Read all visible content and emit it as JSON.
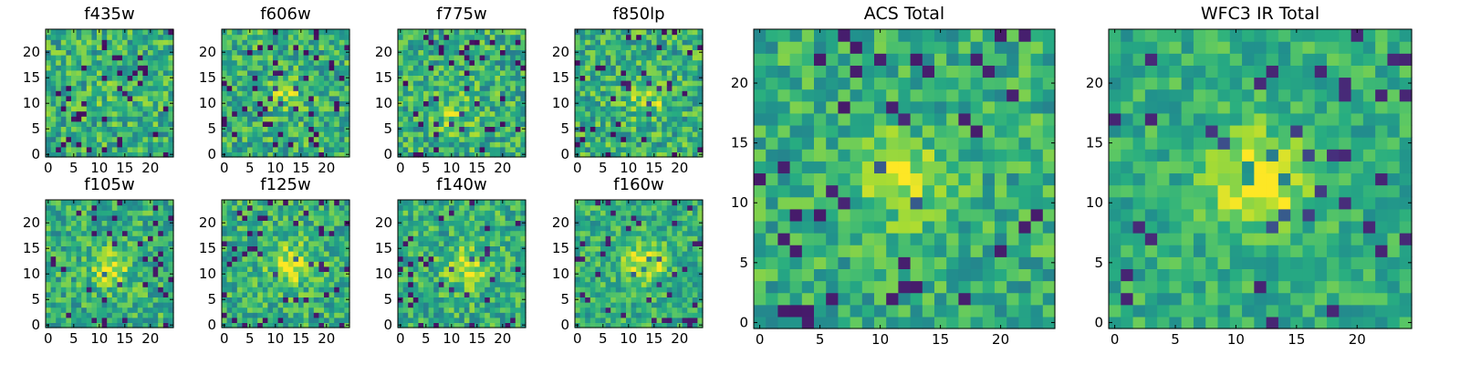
{
  "chart_data": [
    {
      "type": "heatmap",
      "title": "f435w",
      "n": 25,
      "xticks": [
        0,
        5,
        10,
        15,
        20
      ],
      "yticks": [
        0,
        5,
        10,
        15,
        20
      ],
      "xlim": [
        -0.5,
        24.5
      ],
      "ylim": [
        -0.5,
        24.5
      ],
      "colormap": "viridis",
      "source_center": [
        12,
        12
      ],
      "source_strength": 0.05,
      "source_width": 3.0,
      "noise": 0.22,
      "seed": 11,
      "grid": false
    },
    {
      "type": "heatmap",
      "title": "f606w",
      "n": 25,
      "xticks": [
        0,
        5,
        10,
        15,
        20
      ],
      "yticks": [
        0,
        5,
        10,
        15,
        20
      ],
      "xlim": [
        -0.5,
        24.5
      ],
      "ylim": [
        -0.5,
        24.5
      ],
      "colormap": "viridis",
      "source_center": [
        12,
        12
      ],
      "source_strength": 0.28,
      "source_width": 2.0,
      "noise": 0.22,
      "seed": 23,
      "grid": false
    },
    {
      "type": "heatmap",
      "title": "f775w",
      "n": 25,
      "xticks": [
        0,
        5,
        10,
        15,
        20
      ],
      "yticks": [
        0,
        5,
        10,
        15,
        20
      ],
      "xlim": [
        -0.5,
        24.5
      ],
      "ylim": [
        -0.5,
        24.5
      ],
      "colormap": "viridis",
      "source_center": [
        11,
        8
      ],
      "source_strength": 0.15,
      "source_width": 3.0,
      "noise": 0.22,
      "seed": 37,
      "grid": false
    },
    {
      "type": "heatmap",
      "title": "f850lp",
      "n": 25,
      "xticks": [
        0,
        5,
        10,
        15,
        20
      ],
      "yticks": [
        0,
        5,
        10,
        15,
        20
      ],
      "xlim": [
        -0.5,
        24.5
      ],
      "ylim": [
        -0.5,
        24.5
      ],
      "colormap": "viridis",
      "source_center": [
        14,
        11
      ],
      "source_strength": 0.2,
      "source_width": 2.8,
      "noise": 0.22,
      "seed": 41,
      "grid": false
    },
    {
      "type": "heatmap",
      "title": "f105w",
      "n": 25,
      "xticks": [
        0,
        5,
        10,
        15,
        20
      ],
      "yticks": [
        0,
        5,
        10,
        15,
        20
      ],
      "xlim": [
        -0.5,
        24.5
      ],
      "ylim": [
        -0.5,
        24.5
      ],
      "colormap": "viridis",
      "source_center": [
        12,
        11
      ],
      "source_strength": 0.35,
      "source_width": 2.4,
      "noise": 0.2,
      "seed": 53,
      "grid": false
    },
    {
      "type": "heatmap",
      "title": "f125w",
      "n": 25,
      "xticks": [
        0,
        5,
        10,
        15,
        20
      ],
      "yticks": [
        0,
        5,
        10,
        15,
        20
      ],
      "xlim": [
        -0.5,
        24.5
      ],
      "ylim": [
        -0.5,
        24.5
      ],
      "colormap": "viridis",
      "source_center": [
        13,
        12
      ],
      "source_strength": 0.3,
      "source_width": 3.0,
      "noise": 0.2,
      "seed": 67,
      "grid": false
    },
    {
      "type": "heatmap",
      "title": "f140w",
      "n": 25,
      "xticks": [
        0,
        5,
        10,
        15,
        20
      ],
      "yticks": [
        0,
        5,
        10,
        15,
        20
      ],
      "xlim": [
        -0.5,
        24.5
      ],
      "ylim": [
        -0.5,
        24.5
      ],
      "colormap": "viridis",
      "source_center": [
        13,
        11
      ],
      "source_strength": 0.3,
      "source_width": 2.8,
      "noise": 0.2,
      "seed": 79,
      "grid": false
    },
    {
      "type": "heatmap",
      "title": "f160w",
      "n": 25,
      "xticks": [
        0,
        5,
        10,
        15,
        20
      ],
      "yticks": [
        0,
        5,
        10,
        15,
        20
      ],
      "xlim": [
        -0.5,
        24.5
      ],
      "ylim": [
        -0.5,
        24.5
      ],
      "colormap": "viridis",
      "source_center": [
        13,
        12
      ],
      "source_strength": 0.38,
      "source_width": 2.8,
      "noise": 0.18,
      "seed": 83,
      "grid": false
    },
    {
      "type": "heatmap",
      "title": "ACS Total",
      "n": 25,
      "xticks": [
        0,
        5,
        10,
        15,
        20
      ],
      "yticks": [
        0,
        5,
        10,
        15,
        20
      ],
      "xlim": [
        -0.5,
        24.5
      ],
      "ylim": [
        -0.5,
        24.5
      ],
      "colormap": "viridis",
      "source_center": [
        12,
        12
      ],
      "source_strength": 0.3,
      "source_width": 2.4,
      "noise": 0.18,
      "seed": 97,
      "grid": false
    },
    {
      "type": "heatmap",
      "title": "WFC3 IR Total",
      "n": 25,
      "xticks": [
        0,
        5,
        10,
        15,
        20
      ],
      "yticks": [
        0,
        5,
        10,
        15,
        20
      ],
      "xlim": [
        -0.5,
        24.5
      ],
      "ylim": [
        -0.5,
        24.5
      ],
      "colormap": "viridis",
      "source_center": [
        12,
        12
      ],
      "source_strength": 0.45,
      "source_width": 2.6,
      "noise": 0.15,
      "seed": 101,
      "grid": false
    }
  ]
}
